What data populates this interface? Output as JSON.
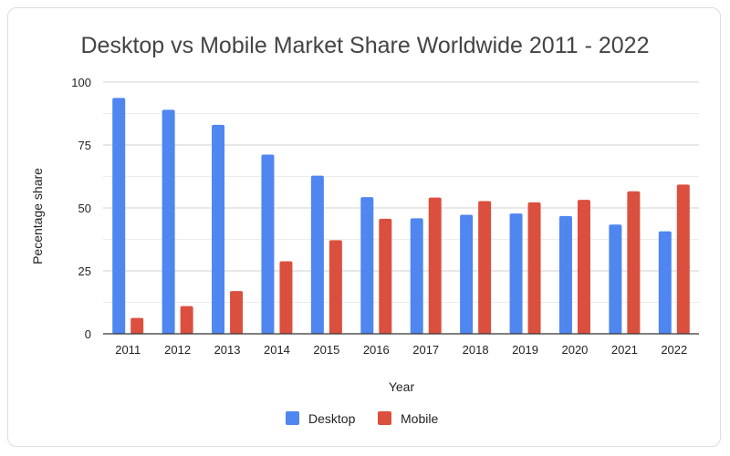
{
  "chart_data": {
    "type": "bar",
    "title": "Desktop vs Mobile Market Share Worldwide 2011 - 2022",
    "xlabel": "Year",
    "ylabel": "Pecentage share",
    "ylim": [
      0,
      100
    ],
    "yticks": [
      0,
      25,
      50,
      75,
      100
    ],
    "grid": true,
    "legend_position": "bottom",
    "categories": [
      "2011",
      "2012",
      "2013",
      "2014",
      "2015",
      "2016",
      "2017",
      "2018",
      "2019",
      "2020",
      "2021",
      "2022"
    ],
    "series": [
      {
        "name": "Desktop",
        "color": "#4f86f0",
        "values": [
          93.7,
          89.0,
          83.0,
          71.2,
          62.8,
          54.3,
          45.9,
          47.3,
          47.8,
          46.8,
          43.4,
          40.7
        ]
      },
      {
        "name": "Mobile",
        "color": "#db4f3f",
        "values": [
          6.3,
          11.0,
          17.0,
          28.8,
          37.2,
          45.7,
          54.1,
          52.7,
          52.2,
          53.2,
          56.6,
          59.3
        ]
      }
    ]
  }
}
